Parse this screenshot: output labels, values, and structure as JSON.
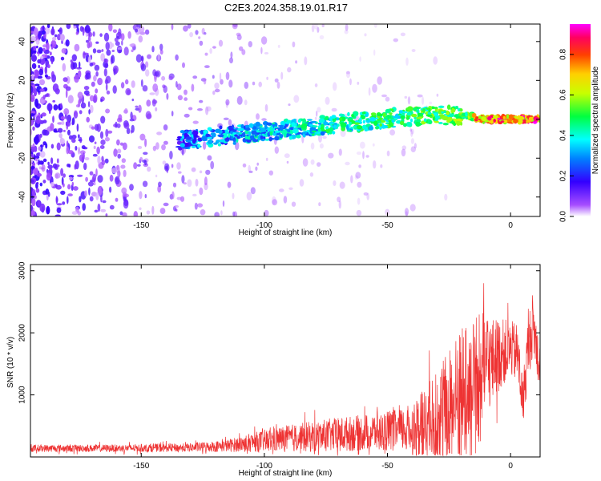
{
  "title": "C2E3.2024.358.19.01.R17",
  "chart_data": [
    {
      "type": "heatmap",
      "xlabel": "Height of straight line (km)",
      "ylabel": "Frequency (Hz)",
      "xlim": [
        -195,
        12
      ],
      "ylim": [
        -50,
        49
      ],
      "xticks": [
        -150,
        -100,
        -50,
        0
      ],
      "yticks": [
        -40,
        -20,
        0,
        20,
        40
      ],
      "colorbar": {
        "label": "Normalized spectral amplitude",
        "range": [
          0,
          0.95
        ],
        "ticks": [
          "0.0",
          "0.2",
          "0.4",
          "0.6",
          "0.8"
        ]
      },
      "ridge": {
        "x": [
          -135,
          -120,
          -105,
          -90,
          -75,
          -60,
          -45,
          -30,
          -20,
          -10,
          0,
          12
        ],
        "y": [
          -11,
          -9,
          -7,
          -5,
          -3,
          -1,
          1,
          2,
          2,
          0,
          0,
          0
        ]
      }
    },
    {
      "type": "line",
      "xlabel": "Height of straight line (km)",
      "ylabel": "SNR (10 * v/v)",
      "xlim": [
        -195,
        12
      ],
      "ylim": [
        0,
        3100
      ],
      "xticks": [
        -150,
        -100,
        -50,
        0
      ],
      "yticks": [
        1000,
        2000,
        3000
      ],
      "series": [
        {
          "color": "#ee3333",
          "envelope": {
            "x": [
              -195,
              -160,
              -130,
              -115,
              -100,
              -90,
              -80,
              -70,
              -60,
              -50,
              -45,
              -40,
              -35,
              -30,
              -25,
              -20,
              -15,
              -12,
              -10,
              -8,
              -5,
              0,
              3,
              5,
              7,
              9,
              12
            ],
            "base": [
              140,
              140,
              150,
              180,
              260,
              300,
              330,
              360,
              390,
              420,
              430,
              450,
              520,
              600,
              780,
              950,
              1100,
              1300,
              1450,
              1550,
              1650,
              1750,
              1650,
              850,
              1700,
              2150,
              1450
            ],
            "amp": [
              60,
              60,
              70,
              100,
              180,
              220,
              250,
              280,
              290,
              330,
              340,
              420,
              600,
              800,
              1000,
              1150,
              1200,
              1100,
              900,
              700,
              600,
              450,
              500,
              400,
              550,
              500,
              400
            ]
          }
        }
      ]
    }
  ]
}
